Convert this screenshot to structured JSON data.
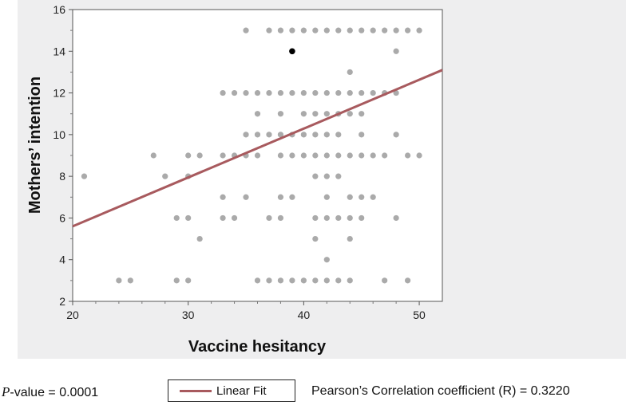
{
  "chart_data": {
    "type": "scatter",
    "xlabel": "Vaccine hesitancy",
    "ylabel": "Mothers’ intention",
    "xlim": [
      20,
      52
    ],
    "ylim": [
      2,
      16
    ],
    "xticks": [
      20,
      30,
      40,
      50
    ],
    "yticks": [
      2,
      4,
      6,
      8,
      10,
      12,
      14,
      16
    ],
    "grid": false,
    "colors": {
      "points": "#aaaaaa",
      "highlight": "#000000",
      "fit_line": "#a85a5e",
      "panel": "#eeeeef"
    },
    "points": [
      [
        35,
        15
      ],
      [
        37,
        15
      ],
      [
        38,
        15
      ],
      [
        39,
        15
      ],
      [
        40,
        15
      ],
      [
        41,
        15
      ],
      [
        42,
        15
      ],
      [
        43,
        15
      ],
      [
        44,
        15
      ],
      [
        45,
        15
      ],
      [
        46,
        15
      ],
      [
        47,
        15
      ],
      [
        48,
        15
      ],
      [
        49,
        15
      ],
      [
        50,
        15
      ],
      [
        48,
        14
      ],
      [
        44,
        13
      ],
      [
        33,
        12
      ],
      [
        34,
        12
      ],
      [
        35,
        12
      ],
      [
        36,
        12
      ],
      [
        37,
        12
      ],
      [
        38,
        12
      ],
      [
        39,
        12
      ],
      [
        40,
        12
      ],
      [
        41,
        12
      ],
      [
        42,
        12
      ],
      [
        43,
        12
      ],
      [
        44,
        12
      ],
      [
        45,
        12
      ],
      [
        46,
        12
      ],
      [
        47,
        12
      ],
      [
        48,
        12
      ],
      [
        36,
        11
      ],
      [
        38,
        11
      ],
      [
        40,
        11
      ],
      [
        41,
        11
      ],
      [
        42,
        11
      ],
      [
        43,
        11
      ],
      [
        44,
        11
      ],
      [
        45,
        11
      ],
      [
        35,
        10
      ],
      [
        36,
        10
      ],
      [
        37,
        10
      ],
      [
        38,
        10
      ],
      [
        39,
        10
      ],
      [
        40,
        10
      ],
      [
        41,
        10
      ],
      [
        42,
        10
      ],
      [
        43,
        10
      ],
      [
        45,
        10
      ],
      [
        48,
        10
      ],
      [
        27,
        9
      ],
      [
        30,
        9
      ],
      [
        31,
        9
      ],
      [
        33,
        9
      ],
      [
        34,
        9
      ],
      [
        35,
        9
      ],
      [
        36,
        9
      ],
      [
        38,
        9
      ],
      [
        39,
        9
      ],
      [
        40,
        9
      ],
      [
        41,
        9
      ],
      [
        42,
        9
      ],
      [
        43,
        9
      ],
      [
        44,
        9
      ],
      [
        45,
        9
      ],
      [
        46,
        9
      ],
      [
        47,
        9
      ],
      [
        49,
        9
      ],
      [
        50,
        9
      ],
      [
        21,
        8
      ],
      [
        28,
        8
      ],
      [
        30,
        8
      ],
      [
        41,
        8
      ],
      [
        42,
        8
      ],
      [
        43,
        8
      ],
      [
        33,
        7
      ],
      [
        35,
        7
      ],
      [
        38,
        7
      ],
      [
        39,
        7
      ],
      [
        42,
        7
      ],
      [
        44,
        7
      ],
      [
        45,
        7
      ],
      [
        46,
        7
      ],
      [
        29,
        6
      ],
      [
        30,
        6
      ],
      [
        33,
        6
      ],
      [
        34,
        6
      ],
      [
        37,
        6
      ],
      [
        38,
        6
      ],
      [
        41,
        6
      ],
      [
        42,
        6
      ],
      [
        43,
        6
      ],
      [
        44,
        6
      ],
      [
        45,
        6
      ],
      [
        48,
        6
      ],
      [
        31,
        5
      ],
      [
        41,
        5
      ],
      [
        44,
        5
      ],
      [
        42,
        4
      ],
      [
        24,
        3
      ],
      [
        25,
        3
      ],
      [
        29,
        3
      ],
      [
        30,
        3
      ],
      [
        36,
        3
      ],
      [
        37,
        3
      ],
      [
        38,
        3
      ],
      [
        39,
        3
      ],
      [
        40,
        3
      ],
      [
        41,
        3
      ],
      [
        42,
        3
      ],
      [
        43,
        3
      ],
      [
        44,
        3
      ],
      [
        47,
        3
      ],
      [
        49,
        3
      ]
    ],
    "highlight_point": [
      39,
      14
    ],
    "fit_line": {
      "name": "Linear Fit",
      "x": [
        20,
        52
      ],
      "y": [
        5.6,
        13.1
      ]
    }
  },
  "footer": {
    "p_symbol": "P",
    "p_rest": "-value = 0.0001",
    "legend_label": "Linear Fit",
    "pearson": "Pearson’s Correlation coefficient (R) = 0.3220"
  }
}
